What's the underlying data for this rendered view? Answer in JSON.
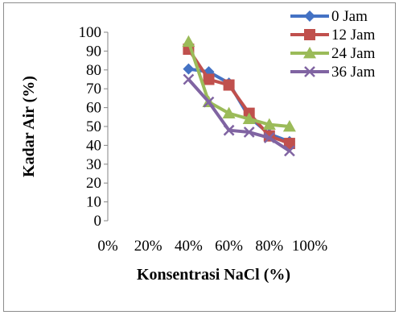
{
  "chart_data": {
    "type": "line",
    "title": "",
    "xlabel": "Konsentrasi NaCl (%)",
    "ylabel": "Kadar Air (%)",
    "xlim": [
      0,
      1
    ],
    "ylim": [
      0,
      100
    ],
    "xticks": [
      "0%",
      "20%",
      "40%",
      "60%",
      "80%",
      "100%"
    ],
    "yticks": [
      "0",
      "10",
      "20",
      "30",
      "40",
      "50",
      "60",
      "70",
      "80",
      "90",
      "100"
    ],
    "x": [
      0.4,
      0.5,
      0.6,
      0.7,
      0.8,
      0.9
    ],
    "grid": false,
    "legend_position": "top-right",
    "series": [
      {
        "name": "0 Jam",
        "color": "#4472C4",
        "marker": "diamond",
        "values": [
          80.5,
          79,
          73,
          55,
          46,
          42
        ]
      },
      {
        "name": "12 Jam",
        "color": "#C0504D",
        "marker": "square",
        "values": [
          91,
          75,
          72,
          57,
          45,
          41
        ]
      },
      {
        "name": "24 Jam",
        "color": "#9BBB59",
        "marker": "triangle",
        "values": [
          95,
          63,
          57,
          54,
          51,
          50
        ]
      },
      {
        "name": "36 Jam",
        "color": "#8064A2",
        "marker": "x",
        "values": [
          75,
          63,
          48,
          47,
          44,
          37
        ]
      }
    ]
  }
}
